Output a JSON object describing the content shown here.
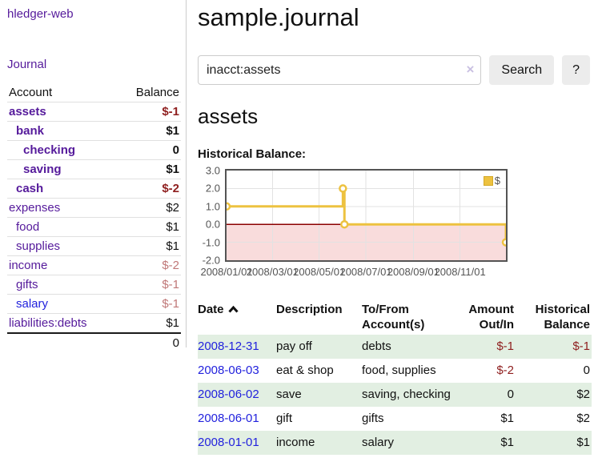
{
  "colors": {
    "purple": "#551a9b",
    "blue": "#2222dd",
    "negative": "#8f1f1f",
    "negative_light": "#c07878",
    "green_row": "#e2efe2",
    "chart_series": "#edc240",
    "chart_negative_fill": "#f9dcdc",
    "chart_zero_line": "#8b0000",
    "chart_axis_text": "#545454",
    "button_bg": "#ececec"
  },
  "sidebar": {
    "app_title": "hledger-web",
    "journal_link": "Journal",
    "accounts": {
      "headers": {
        "account": "Account",
        "balance": "Balance"
      },
      "rows": [
        {
          "label": "assets",
          "balance": "$-1",
          "depth": 1,
          "in_account": true,
          "balance_tone": "neg"
        },
        {
          "label": "bank",
          "balance": "$1",
          "depth": 2,
          "in_account": true,
          "balance_tone": ""
        },
        {
          "label": "checking",
          "balance": "0",
          "depth": 3,
          "in_account": true,
          "balance_tone": ""
        },
        {
          "label": "saving",
          "balance": "$1",
          "depth": 3,
          "in_account": true,
          "balance_tone": ""
        },
        {
          "label": "cash",
          "balance": "$-2",
          "depth": 2,
          "in_account": true,
          "balance_tone": "neg"
        },
        {
          "label": "expenses",
          "balance": "$2",
          "depth": 1,
          "in_account": false,
          "balance_tone": ""
        },
        {
          "label": "food",
          "balance": "$1",
          "depth": 2,
          "in_account": false,
          "balance_tone": ""
        },
        {
          "label": "supplies",
          "balance": "$1",
          "depth": 2,
          "in_account": false,
          "balance_tone": ""
        },
        {
          "label": "income",
          "balance": "$-2",
          "depth": 1,
          "in_account": false,
          "balance_tone": "neg-light"
        },
        {
          "label": "gifts",
          "balance": "$-1",
          "depth": 2,
          "in_account": false,
          "balance_tone": "neg-light"
        },
        {
          "label": "salary",
          "balance": "$-1",
          "depth": 2,
          "in_account": false,
          "balance_tone": "neg-light",
          "link_color": "blue"
        },
        {
          "label": "liabilities:debts",
          "balance": "$1",
          "depth": 1,
          "in_account": false,
          "balance_tone": ""
        }
      ],
      "total": "0"
    }
  },
  "main": {
    "page_title": "sample.journal",
    "search": {
      "value": "inacct:assets",
      "clear_icon": "×",
      "search_button": "Search",
      "help_button": "?"
    },
    "account_heading": "assets",
    "chart_title": "Historical Balance:"
  },
  "chart_data": {
    "type": "line",
    "line_style": "steps",
    "title": "Historical Balance:",
    "series": [
      {
        "name": "$",
        "color": "#edc240",
        "points": [
          [
            "2008-01-01",
            1
          ],
          [
            "2008-06-01",
            2
          ],
          [
            "2008-06-03",
            0
          ],
          [
            "2008-12-31",
            -1
          ]
        ]
      }
    ],
    "x_ticks": [
      "2008/01/01",
      "2008/03/01",
      "2008/05/01",
      "2008/07/01",
      "2008/09/01",
      "2008/11/01"
    ],
    "y_ticks": [
      "3.0",
      "2.0",
      "1.0",
      "0.0",
      "-1.0",
      "-2.0"
    ],
    "xlim": [
      "2008-01-01",
      "2008-12-31"
    ],
    "ylim": [
      -2,
      3
    ],
    "grid": true,
    "legend": {
      "label": "$",
      "position": "top-right"
    },
    "negative_region_fill": "#f9dcdc",
    "zero_line_color": "#8b0000"
  },
  "transactions": {
    "columns": [
      {
        "id": "date",
        "lines": [
          "Date"
        ],
        "align": "left",
        "sorted_asc": true
      },
      {
        "id": "description",
        "lines": [
          "Description"
        ],
        "align": "left"
      },
      {
        "id": "accounts",
        "lines": [
          "To/From",
          "Account(s)"
        ],
        "align": "left"
      },
      {
        "id": "amount",
        "lines": [
          "Amount",
          "Out/In"
        ],
        "align": "right"
      },
      {
        "id": "balance",
        "lines": [
          "Historical",
          "Balance"
        ],
        "align": "right"
      }
    ],
    "rows": [
      {
        "date": "2008-12-31",
        "description": "pay off",
        "accounts": "debts",
        "amount": "$-1",
        "amount_negative": true,
        "balance": "$-1",
        "balance_negative": true,
        "shaded": true
      },
      {
        "date": "2008-06-03",
        "description": "eat & shop",
        "accounts": "food, supplies",
        "amount": "$-2",
        "amount_negative": true,
        "balance": "0",
        "balance_negative": false,
        "shaded": false
      },
      {
        "date": "2008-06-02",
        "description": "save",
        "accounts": "saving, checking",
        "amount": "0",
        "amount_negative": false,
        "balance": "$2",
        "balance_negative": false,
        "shaded": true
      },
      {
        "date": "2008-06-01",
        "description": "gift",
        "accounts": "gifts",
        "amount": "$1",
        "amount_negative": false,
        "balance": "$2",
        "balance_negative": false,
        "shaded": false
      },
      {
        "date": "2008-01-01",
        "description": "income",
        "accounts": "salary",
        "amount": "$1",
        "amount_negative": false,
        "balance": "$1",
        "balance_negative": false,
        "shaded": true
      }
    ]
  }
}
